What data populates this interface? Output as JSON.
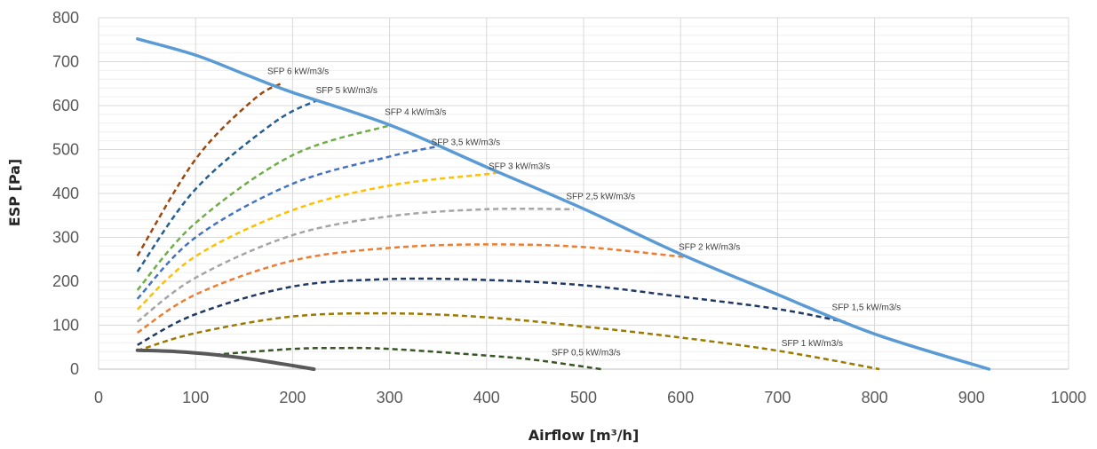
{
  "chart_data": {
    "type": "line",
    "title": "",
    "xlabel": "Airflow [m³/h]",
    "ylabel": "ESP  [Pa]",
    "xlim": [
      0,
      1000
    ],
    "ylim": [
      0,
      800
    ],
    "x_ticks": [
      0,
      100,
      200,
      300,
      400,
      500,
      600,
      700,
      800,
      900,
      1000
    ],
    "y_ticks": [
      0,
      100,
      200,
      300,
      400,
      500,
      600,
      700,
      800
    ],
    "grid": {
      "major": true,
      "minor_y": 20
    },
    "legend": "none",
    "series": [
      {
        "color": "#5B9BD5",
        "style": "solid",
        "x": [
          40,
          100,
          150,
          200,
          300,
          400,
          500,
          600,
          700,
          800,
          918
        ],
        "y": [
          752,
          715,
          672,
          630,
          556,
          460,
          365,
          262,
          170,
          80,
          0
        ]
      },
      {
        "color": "#595959",
        "style": "solid",
        "x": [
          40,
          80,
          120,
          160,
          200,
          222
        ],
        "y": [
          43,
          40,
          33,
          22,
          8,
          0
        ]
      },
      {
        "name": "SFP 0,5 kW/m3/s",
        "color": "#375623",
        "style": "dashed",
        "x": [
          120,
          200,
          250,
          300,
          400,
          450,
          518
        ],
        "y": [
          33,
          46,
          48,
          46,
          31,
          21,
          0
        ]
      },
      {
        "name": "SFP 1 kW/m3/s",
        "color": "#9C7A00",
        "style": "dashed",
        "x": [
          40,
          100,
          200,
          300,
          400,
          500,
          600,
          700,
          805
        ],
        "y": [
          42,
          82,
          120,
          127,
          118,
          97,
          72,
          42,
          0
        ]
      },
      {
        "name": "SFP 1,5 kW/m3/s",
        "color": "#203864",
        "style": "dashed",
        "x": [
          40,
          100,
          200,
          300,
          400,
          500,
          600,
          700,
          770
        ],
        "y": [
          55,
          125,
          188,
          205,
          203,
          191,
          165,
          137,
          107
        ]
      },
      {
        "name": "SFP 2 kW/m3/s",
        "color": "#ED7D31",
        "style": "dashed",
        "x": [
          40,
          100,
          200,
          300,
          400,
          500,
          605
        ],
        "y": [
          83,
          170,
          247,
          276,
          284,
          278,
          255
        ]
      },
      {
        "name": "SFP 2,5 kW/m3/s",
        "color": "#A5A5A5",
        "style": "dashed",
        "x": [
          40,
          100,
          200,
          300,
          400,
          490
        ],
        "y": [
          108,
          208,
          305,
          348,
          364,
          364
        ]
      },
      {
        "name": "SFP 3 kW/m3/s",
        "color": "#FFC000",
        "style": "dashed",
        "x": [
          40,
          100,
          200,
          300,
          400,
          410
        ],
        "y": [
          136,
          257,
          362,
          418,
          444,
          447
        ]
      },
      {
        "name": "SFP 3,5 kW/m3/s",
        "color": "#4472C4",
        "style": "dashed",
        "x": [
          40,
          100,
          200,
          300,
          352
        ],
        "y": [
          160,
          300,
          422,
          484,
          508
        ]
      },
      {
        "name": "SFP 4 kW/m3/s",
        "color": "#70AD47",
        "style": "dashed",
        "x": [
          40,
          100,
          200,
          300
        ],
        "y": [
          180,
          333,
          487,
          555
        ]
      },
      {
        "name": "SFP 5 kW/m3/s",
        "color": "#255E91",
        "style": "dashed",
        "x": [
          40,
          100,
          180,
          225
        ],
        "y": [
          222,
          410,
          560,
          612
        ]
      },
      {
        "name": "SFP 6 kW/m3/s",
        "color": "#9E480E",
        "style": "dashed",
        "x": [
          40,
          100,
          160,
          190
        ],
        "y": [
          258,
          478,
          614,
          652
        ]
      }
    ],
    "annotations": [
      {
        "text": "SFP 6 kW/m3/s",
        "x": 174,
        "y": 672
      },
      {
        "text": "SFP 5 kW/m3/s",
        "x": 224,
        "y": 628
      },
      {
        "text": "SFP 4 kW/m3/s",
        "x": 295,
        "y": 579
      },
      {
        "text": "SFP 3,5 kW/m3/s",
        "x": 343,
        "y": 510
      },
      {
        "text": "SFP 3 kW/m3/s",
        "x": 402,
        "y": 456
      },
      {
        "text": "SFP 2,5 kW/m3/s",
        "x": 482,
        "y": 387
      },
      {
        "text": "SFP 2 kW/m3/s",
        "x": 598,
        "y": 272
      },
      {
        "text": "SFP 1,5 kW/m3/s",
        "x": 756,
        "y": 134
      },
      {
        "text": "SFP 1 kW/m3/s",
        "x": 704,
        "y": 53
      },
      {
        "text": "SFP 0,5 kW/m3/s",
        "x": 467,
        "y": 31
      }
    ]
  }
}
